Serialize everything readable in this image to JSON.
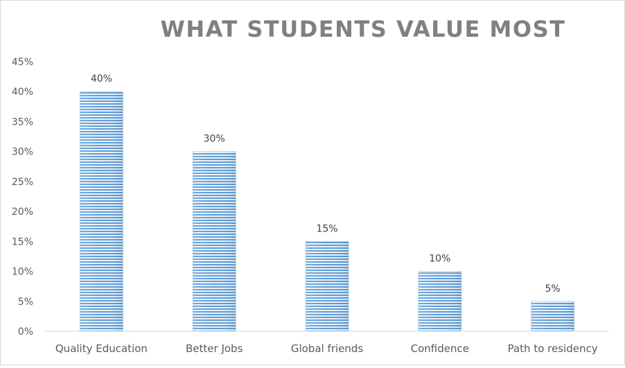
{
  "chart_data": {
    "type": "bar",
    "title": "WHAT STUDENTS VALUE MOST",
    "xlabel": "",
    "ylabel": "",
    "categories": [
      "Quality Education",
      "Better Jobs",
      "Global friends",
      "Confidence",
      "Path to residency"
    ],
    "values": [
      40,
      30,
      15,
      10,
      5
    ],
    "data_labels": [
      "40%",
      "30%",
      "15%",
      "10%",
      "5%"
    ],
    "y_ticks": [
      "0%",
      "5%",
      "10%",
      "15%",
      "20%",
      "25%",
      "30%",
      "35%",
      "40%",
      "45%"
    ],
    "ylim": [
      0,
      45
    ],
    "grid": false,
    "legend": "none",
    "bar_color": "#5b9bd5",
    "bar_fill": "horizontal-stripes"
  }
}
